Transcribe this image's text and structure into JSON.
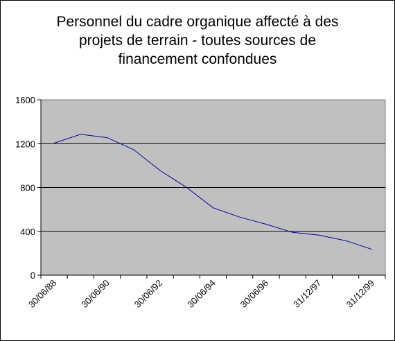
{
  "chart_data": {
    "type": "line",
    "title": "Personnel du cadre organique affecté à des\nprojets de terrain - toutes sources de\nfinancement confondues",
    "xlabel": "",
    "ylabel": "",
    "ylim": [
      0,
      1600
    ],
    "yticks": [
      "0",
      "400",
      "800",
      "1200",
      "1600"
    ],
    "xtick_labels": [
      "30/06/88",
      "30/06/90",
      "30/06/92",
      "30/06/94",
      "30/06/96",
      "31/12/97",
      "31/12/99"
    ],
    "grid": true,
    "legend": "none",
    "plot_background": "#c0c0c0",
    "line_color": "#0000a0",
    "series": [
      {
        "values": [
          1205,
          1285,
          1255,
          1145,
          955,
          800,
          615,
          530,
          465,
          390,
          365,
          315,
          235
        ]
      }
    ]
  }
}
